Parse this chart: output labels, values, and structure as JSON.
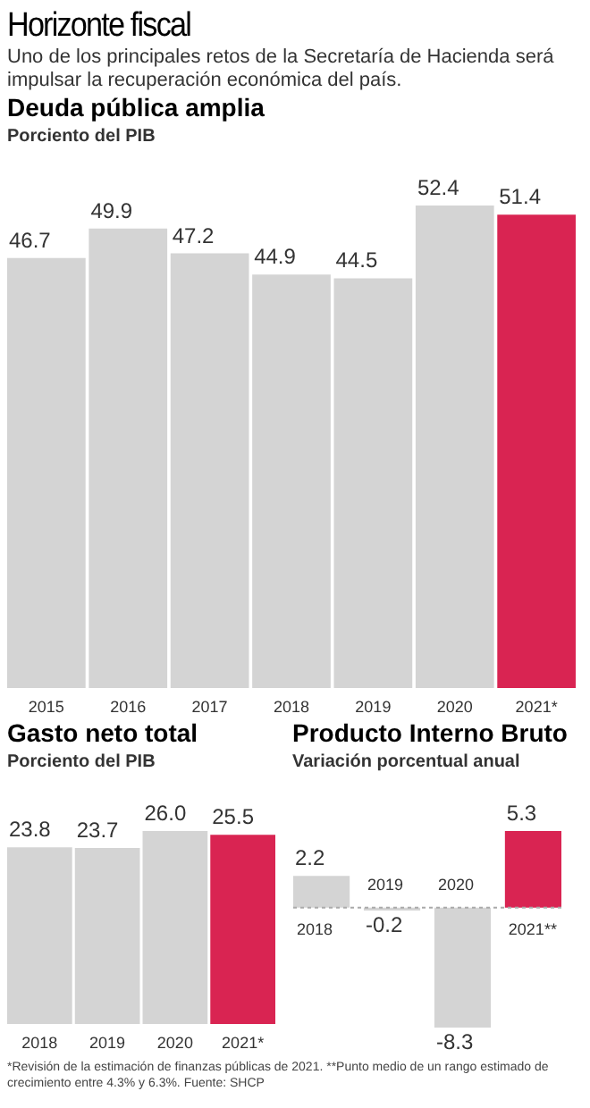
{
  "chart_data": [
    {
      "type": "other",
      "title": "Horizonte fiscal",
      "subtitle": "Uno de los principales retos de la Secretaría de Hacienda será impulsar la recuperación económica del país."
    },
    {
      "type": "bar",
      "title": "Deuda pública amplia",
      "subtitle": "Porciento del PIB",
      "categories": [
        "2015",
        "2016",
        "2017",
        "2018",
        "2019",
        "2020",
        "2021*"
      ],
      "values": [
        46.7,
        49.9,
        47.2,
        44.9,
        44.5,
        52.4,
        51.4
      ],
      "value_labels": [
        "46.7",
        "49.9",
        "47.2",
        "44.9",
        "44.5",
        "52.4",
        "51.4"
      ],
      "colors": [
        "#d4d4d4",
        "#d4d4d4",
        "#d4d4d4",
        "#d4d4d4",
        "#d4d4d4",
        "#d4d4d4",
        "#d92452"
      ]
    },
    {
      "type": "bar",
      "title": "Gasto neto total",
      "subtitle": "Porciento del PIB",
      "categories": [
        "2018",
        "2019",
        "2020",
        "2021*"
      ],
      "values": [
        23.8,
        23.7,
        26.0,
        25.5
      ],
      "value_labels": [
        "23.8",
        "23.7",
        "26.0",
        "25.5"
      ],
      "colors": [
        "#d4d4d4",
        "#d4d4d4",
        "#d4d4d4",
        "#d92452"
      ]
    },
    {
      "type": "bar",
      "title": "Producto Interno Bruto",
      "subtitle": "Variación porcentual anual",
      "categories": [
        "2018",
        "2019",
        "2020",
        "2021**"
      ],
      "values": [
        2.2,
        -0.2,
        -8.3,
        5.3
      ],
      "value_labels": [
        "2.2",
        "-0.2",
        "-8.3",
        "5.3"
      ],
      "colors": [
        "#d4d4d4",
        "#d4d4d4",
        "#d4d4d4",
        "#d92452"
      ],
      "ref_lines": [
        {
          "axis": "y",
          "value": 0,
          "color": "#aaaaaa",
          "line_style": "dotted"
        }
      ],
      "annotations": [
        "*Revisión de la estimación de finanzas públicas de 2021. **Punto medio de un rango estimado de crecimiento entre 4.3% y 6.3%. Fuente: SHCP"
      ]
    }
  ]
}
